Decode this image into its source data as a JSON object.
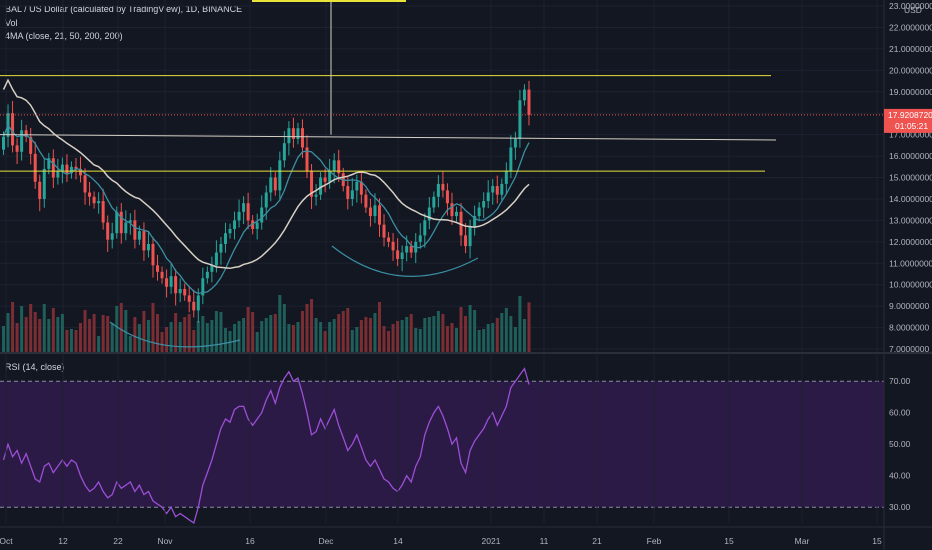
{
  "header": {
    "symbol_line": "BAL / US Dollar (calculated by TradingView), 1D, BINANCE",
    "vol_label": "Vol",
    "ma_label": "4MA (close, 21, 50, 200, 200)",
    "rsi_label": "RSI (14, close)",
    "currency": "USD"
  },
  "colors": {
    "background": "#131722",
    "up": "#26a69a",
    "down": "#ef5350",
    "rsi_line": "#9c4fd6",
    "rsi_band": "#2b1a45",
    "ma_fast": "#3b8fa3",
    "ma_slow": "#d6d0c4",
    "level": "#e8e339",
    "price_tag": "#ef5350"
  },
  "price_tag": {
    "price": "17.9208720",
    "countdown": "01:05:21"
  },
  "chart_data": [
    {
      "type": "candlestick",
      "title": "BAL / US Dollar (calculated by TradingView), 1D, BINANCE",
      "y_ticks": [
        "7.0000000",
        "8.0000000",
        "9.0000000",
        "10.0000000",
        "11.0000000",
        "12.0000000",
        "13.0000000",
        "14.0000000",
        "15.0000000",
        "16.0000000",
        "17.0000000",
        "18.0000000",
        "19.0000000",
        "20.0000000",
        "21.0000000",
        "22.0000000",
        "23.0000000"
      ],
      "ylim": [
        7,
        23
      ],
      "x_ticks": [
        "Oct",
        "12",
        "22",
        "Nov",
        "16",
        "Dec",
        "14",
        "2021",
        "11",
        "21",
        "Feb",
        "15",
        "Mar",
        "15"
      ],
      "closes": [
        16.9,
        18.0,
        16.5,
        16.2,
        17.2,
        16.9,
        16.1,
        14.8,
        14.0,
        15.4,
        15.9,
        15.0,
        15.3,
        15.6,
        15.2,
        15.5,
        15.4,
        15.1,
        14.3,
        14.1,
        13.8,
        13.9,
        12.9,
        12.1,
        12.4,
        13.4,
        12.4,
        12.9,
        13.0,
        12.1,
        12.5,
        11.6,
        11.9,
        10.9,
        10.6,
        10.3,
        9.9,
        10.4,
        9.6,
        9.8,
        9.5,
        9.2,
        8.8,
        9.5,
        10.3,
        10.6,
        10.9,
        11.5,
        11.9,
        12.4,
        12.6,
        13.0,
        13.4,
        13.8,
        13.0,
        12.6,
        12.9,
        13.6,
        14.3,
        15.0,
        14.4,
        15.8,
        16.6,
        17.3,
        16.8,
        17.3,
        16.4,
        15.3,
        14.1,
        14.2,
        15.0,
        14.8,
        15.3,
        15.8,
        15.2,
        14.6,
        14.0,
        14.4,
        14.8,
        14.2,
        13.6,
        13.2,
        13.7,
        12.8,
        12.2,
        12.0,
        11.6,
        11.2,
        11.5,
        11.8,
        11.5,
        12.0,
        12.3,
        13.0,
        13.6,
        14.1,
        14.7,
        14.4,
        13.8,
        13.2,
        13.4,
        12.3,
        11.8,
        12.7,
        13.2,
        13.6,
        13.9,
        14.3,
        14.6,
        14.2,
        14.7,
        15.3,
        16.4,
        16.8,
        18.6,
        19.1,
        17.92
      ],
      "overlays": [
        {
          "type": "horizontal_line",
          "name": "",
          "value": 19.75,
          "color": "#e8e339"
        },
        {
          "type": "horizontal_line",
          "name": "",
          "value": 15.3,
          "color": "#e8e339"
        },
        {
          "type": "trend_line",
          "name": "",
          "values": [
            17.0,
            16.75
          ],
          "color": "#d6d0c4"
        },
        {
          "type": "vertical_line",
          "name": "",
          "color": "#d6d0c4"
        }
      ],
      "moving_averages": [
        {
          "name": "MA 21",
          "color": "#3b8fa3"
        },
        {
          "name": "MA 50",
          "color": "#d6d0c4"
        }
      ]
    },
    {
      "type": "line",
      "title": "RSI (14, close)",
      "y_ticks": [
        "30.00",
        "40.00",
        "50.00",
        "60.00",
        "70.00"
      ],
      "ylim": [
        25,
        78
      ],
      "bands": [
        30,
        70
      ],
      "values": [
        45,
        50,
        46,
        48,
        44,
        47,
        43,
        39,
        38,
        43,
        44,
        41,
        43,
        45,
        43,
        45,
        44,
        40,
        37,
        35,
        36,
        38,
        35,
        33,
        34,
        38,
        36,
        37,
        38,
        35,
        37,
        34,
        35,
        32,
        31,
        30,
        28,
        30,
        27,
        28,
        27,
        26,
        25,
        30,
        37,
        41,
        45,
        50,
        55,
        58,
        57,
        61,
        62,
        62,
        58,
        56,
        58,
        60,
        64,
        67,
        63,
        68,
        71,
        73,
        70,
        71,
        66,
        60,
        53,
        54,
        58,
        55,
        58,
        61,
        56,
        52,
        48,
        50,
        53,
        49,
        45,
        43,
        45,
        42,
        39,
        38,
        36,
        35,
        37,
        40,
        38,
        43,
        46,
        53,
        57,
        60,
        62,
        59,
        55,
        50,
        52,
        44,
        41,
        48,
        51,
        53,
        55,
        58,
        60,
        56,
        59,
        62,
        68,
        70,
        72,
        74,
        69
      ]
    }
  ]
}
